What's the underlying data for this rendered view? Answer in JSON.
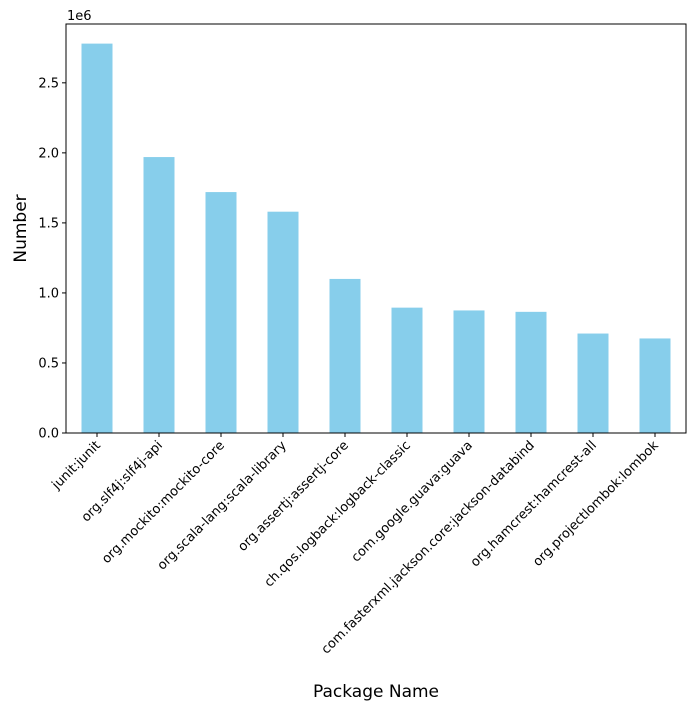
{
  "chart_data": {
    "type": "bar",
    "title": "",
    "xlabel": "Package Name",
    "ylabel": "Number",
    "y_offset_label": "1e6",
    "ylim": [
      0,
      2920000
    ],
    "yticks": [
      0,
      500000,
      1000000,
      1500000,
      2000000,
      2500000
    ],
    "ytick_labels": [
      "0.0",
      "0.5",
      "1.0",
      "1.5",
      "2.0",
      "2.5"
    ],
    "categories": [
      "junit:junit",
      "org.slf4j:slf4j-api",
      "org.mockito:mockito-core",
      "org.scala-lang:scala-library",
      "org.assertj:assertj-core",
      "ch.qos.logback:logback-classic",
      "com.google.guava:guava",
      "com.fasterxml.jackson.core:jackson-databind",
      "org.hamcrest:hamcrest-all",
      "org.projectlombok:lombok"
    ],
    "values": [
      2780000,
      1970000,
      1720000,
      1580000,
      1100000,
      895000,
      875000,
      865000,
      710000,
      675000
    ],
    "bar_color": "#87CEEB",
    "grid": false,
    "legend": "none"
  }
}
